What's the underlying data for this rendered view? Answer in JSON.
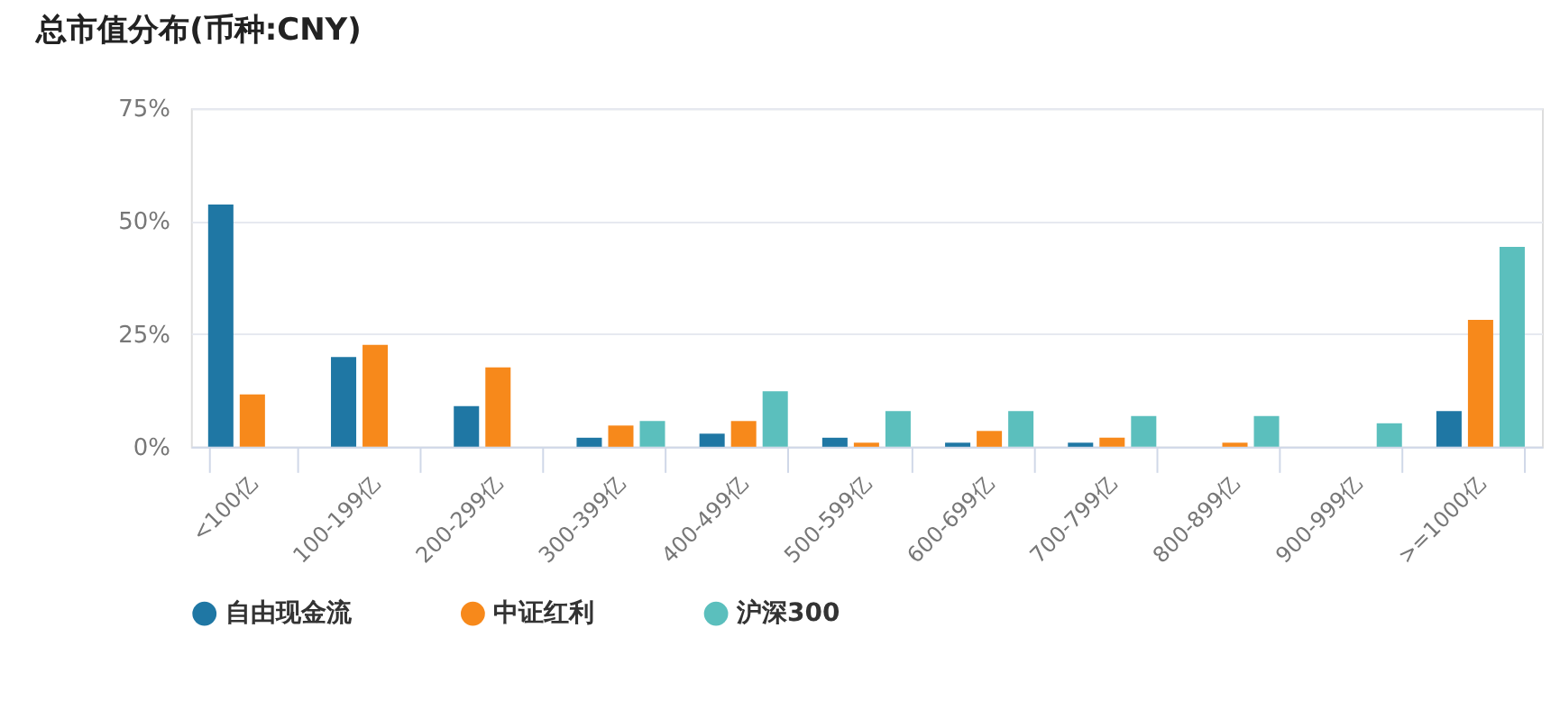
{
  "chart_data": {
    "type": "bar",
    "title": "总市值分布(币种:CNY)",
    "categories": [
      "<100亿",
      "100-199亿",
      "200-299亿",
      "300-399亿",
      "400-499亿",
      "500-599亿",
      "600-699亿",
      "700-799亿",
      "800-899亿",
      "900-999亿",
      ">=1000亿"
    ],
    "series": [
      {
        "name": "自由现金流",
        "color": "#1f77a4",
        "values": [
          53.7,
          19.9,
          9.0,
          2.0,
          2.9,
          2.0,
          0.9,
          0.9,
          null,
          null,
          7.9
        ]
      },
      {
        "name": "中证红利",
        "color": "#f7891b",
        "values": [
          11.6,
          22.6,
          17.6,
          4.7,
          5.7,
          0.9,
          3.5,
          2.0,
          0.9,
          null,
          28.1
        ]
      },
      {
        "name": "沪深300",
        "color": "#5bbfbd",
        "values": [
          null,
          null,
          null,
          5.7,
          12.3,
          7.9,
          7.9,
          6.8,
          6.8,
          5.2,
          44.3
        ]
      }
    ],
    "ylim": [
      0,
      75
    ],
    "yticks": [
      {
        "value": 0,
        "label": "0%"
      },
      {
        "value": 25,
        "label": "25%"
      },
      {
        "value": 50,
        "label": "50%"
      },
      {
        "value": 75,
        "label": "75%"
      }
    ],
    "grid": "y",
    "legend": "bottom"
  }
}
